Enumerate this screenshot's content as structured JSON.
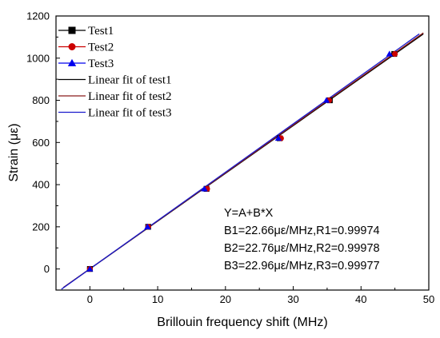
{
  "chart_data": {
    "type": "line",
    "xlabel": "Brillouin frequency shift (MHz)",
    "ylabel": "Strain (με)",
    "xlim": [
      -5,
      50
    ],
    "ylim": [
      -100,
      1200
    ],
    "x_ticks": [
      "0",
      "10",
      "20",
      "30",
      "40",
      "50"
    ],
    "y_ticks": [
      "0",
      "200",
      "400",
      "600",
      "800",
      "1000",
      "1200"
    ],
    "grid": false,
    "legend_position": "top-left",
    "series": [
      {
        "name": "Test1",
        "marker": "square",
        "color": "#000000",
        "points": [
          {
            "x": 0,
            "y": 0
          },
          {
            "x": 8.6,
            "y": 200
          },
          {
            "x": 17.2,
            "y": 380
          },
          {
            "x": 28.0,
            "y": 620
          },
          {
            "x": 35.4,
            "y": 800
          },
          {
            "x": 44.9,
            "y": 1020
          }
        ]
      },
      {
        "name": "Test2",
        "marker": "circle",
        "color": "#cc0000",
        "points": [
          {
            "x": 0,
            "y": 0
          },
          {
            "x": 8.6,
            "y": 200
          },
          {
            "x": 17.3,
            "y": 380
          },
          {
            "x": 28.2,
            "y": 620
          },
          {
            "x": 35.3,
            "y": 800
          },
          {
            "x": 45.0,
            "y": 1020
          }
        ]
      },
      {
        "name": "Test3",
        "marker": "triangle",
        "color": "#0000ee",
        "points": [
          {
            "x": 0,
            "y": 0
          },
          {
            "x": 8.5,
            "y": 200
          },
          {
            "x": 16.9,
            "y": 380
          },
          {
            "x": 27.8,
            "y": 620
          },
          {
            "x": 34.9,
            "y": 800
          },
          {
            "x": 44.2,
            "y": 1020
          }
        ]
      }
    ],
    "fits": [
      {
        "name": "Linear fit of test1",
        "color": "#000000",
        "x": [
          -3.9,
          49.2
        ],
        "y": [
          -88,
          1115
        ]
      },
      {
        "name": "Linear fit of test2",
        "color": "#8b1a1a",
        "x": [
          -3.9,
          49.2
        ],
        "y": [
          -88,
          1120
        ]
      },
      {
        "name": "Linear fit of test3",
        "color": "#1a1acc",
        "x": [
          -4.2,
          48.6
        ],
        "y": [
          -96,
          1115
        ]
      }
    ],
    "annotations": [
      "Y=A+B*X",
      "B1=22.66με/MHz,R1=0.99974",
      "B2=22.76με/MHz,R2=0.99978",
      "B3=22.96με/MHz,R3=0.99977"
    ]
  }
}
